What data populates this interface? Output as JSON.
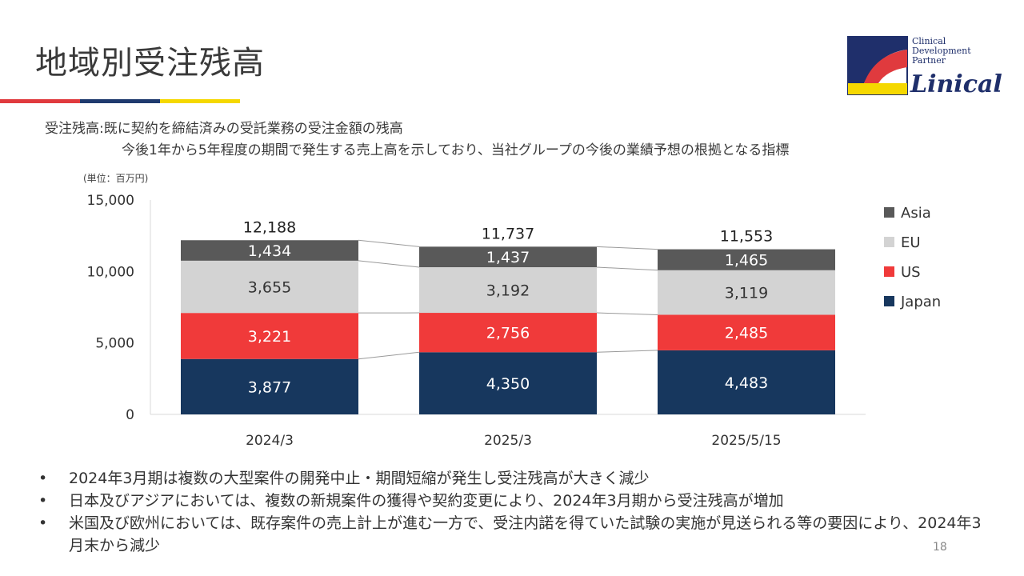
{
  "page": {
    "title": "地域別受注残高",
    "definition": {
      "line1": "受注残高:既に契約を締結済みの受託業務の受注金額の残高",
      "line2": "今後1年から5年程度の期間で発生する売上高を示しており、当社グループの今後の業績予想の根拠となる指標"
    },
    "unit_note": "(単位：百万円)",
    "bullets": [
      "2024年3月期は複数の大型案件の開発中止・期間短縮が発生し受注残高が大きく減少",
      "日本及びアジアにおいては、複数の新規案件の獲得や契約変更により、2024年3月期から受注残高が増加",
      "米国及び欧州においては、既存案件の売上計上が進む一方で、受注内諾を得ていた試験の実施が見送られる等の要因により、2024年3月末から減少"
    ],
    "page_number": "18"
  },
  "logo": {
    "tagline": "Clinical\nDevelopment\nPartner",
    "wordmark": "Linical"
  },
  "colors": {
    "accent_red": "#e03a3e",
    "accent_navy": "#1f3a6e",
    "accent_yellow": "#f5d800"
  },
  "chart_data": {
    "type": "bar",
    "stacked": true,
    "categories": [
      "2024/3",
      "2025/3",
      "2025/5/15"
    ],
    "series": [
      {
        "name": "Japan",
        "values": [
          3877,
          4350,
          4483
        ],
        "color": "#17375e"
      },
      {
        "name": "US",
        "values": [
          3221,
          2756,
          2485
        ],
        "color": "#f03a3a"
      },
      {
        "name": "EU",
        "values": [
          3655,
          3192,
          3119
        ],
        "color": "#d3d3d3"
      },
      {
        "name": "Asia",
        "values": [
          1434,
          1437,
          1465
        ],
        "color": "#595959"
      }
    ],
    "totals": [
      12188,
      11737,
      11553
    ],
    "ylim": [
      0,
      15000
    ],
    "yticks": [
      0,
      5000,
      10000,
      15000
    ],
    "legend_position": "right",
    "connector_lines": true,
    "grid": false
  }
}
